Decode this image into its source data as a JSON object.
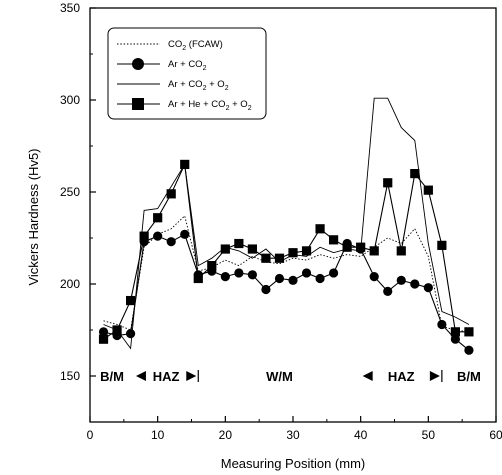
{
  "chart_data": {
    "type": "line",
    "xlabel": "Measuring Position (mm)",
    "ylabel": "Vickers Hardness (Hv5)",
    "xlim": [
      0,
      60
    ],
    "ylim": [
      125,
      350
    ],
    "xticks": [
      "0",
      "10",
      "20",
      "30",
      "40",
      "50",
      "60"
    ],
    "yticks": [
      "150",
      "200",
      "250",
      "300",
      "350"
    ],
    "xtick_values": [
      0,
      10,
      20,
      30,
      40,
      50,
      60
    ],
    "ytick_values": [
      150,
      200,
      250,
      300,
      350
    ],
    "grid": false,
    "legend_position": "top-left",
    "series": [
      {
        "name": "CO2 (FCAW)",
        "marker": "none",
        "line": "dotted",
        "x": [
          2,
          4,
          6,
          8,
          10,
          12,
          14,
          16,
          18,
          20,
          22,
          24,
          26,
          28,
          30,
          32,
          34,
          36,
          38,
          40,
          42,
          44,
          46,
          48,
          50,
          52,
          54,
          56
        ],
        "y": [
          180,
          178,
          175,
          220,
          227,
          230,
          237,
          207,
          209,
          213,
          210,
          215,
          212,
          211,
          214,
          213,
          216,
          214,
          216,
          215,
          220,
          225,
          222,
          230,
          215,
          177,
          175,
          174
        ]
      },
      {
        "name": "Ar + CO2",
        "marker": "circle",
        "line": "solid",
        "x": [
          2,
          4,
          6,
          8,
          10,
          12,
          14,
          16,
          18,
          20,
          22,
          24,
          26,
          28,
          30,
          32,
          34,
          36,
          38,
          40,
          42,
          44,
          46,
          48,
          50,
          52,
          54,
          56
        ],
        "y": [
          174,
          172,
          173,
          223,
          226,
          223,
          227,
          205,
          207,
          204,
          206,
          205,
          197,
          203,
          202,
          206,
          203,
          206,
          222,
          219,
          204,
          196,
          202,
          200,
          198,
          178,
          170,
          164
        ]
      },
      {
        "name": "Ar + CO2 + O2",
        "marker": "none",
        "line": "solid",
        "x": [
          2,
          4,
          6,
          8,
          10,
          12,
          14,
          16,
          18,
          20,
          22,
          24,
          26,
          28,
          30,
          32,
          34,
          36,
          38,
          40,
          42,
          44,
          46,
          48,
          50,
          52,
          54,
          56
        ],
        "y": [
          178,
          175,
          165,
          240,
          241,
          253,
          265,
          210,
          214,
          220,
          218,
          214,
          219,
          212,
          216,
          215,
          220,
          217,
          219,
          218,
          301,
          301,
          285,
          278,
          222,
          185,
          182,
          178
        ]
      },
      {
        "name": "Ar + He + CO2 + O2",
        "marker": "square",
        "line": "solid",
        "x": [
          2,
          4,
          6,
          8,
          10,
          12,
          14,
          16,
          18,
          20,
          22,
          24,
          26,
          28,
          30,
          32,
          34,
          36,
          38,
          40,
          42,
          44,
          46,
          48,
          50,
          52,
          54,
          56
        ],
        "y": [
          170,
          175,
          191,
          226,
          236,
          249,
          265,
          203,
          210,
          219,
          222,
          219,
          214,
          214,
          217,
          218,
          230,
          224,
          220,
          220,
          218,
          255,
          218,
          260,
          251,
          221,
          174,
          174
        ]
      }
    ],
    "legend": [
      {
        "base": "CO",
        "sub": "2",
        "tail": " (FCAW)"
      },
      {
        "base": "Ar + CO",
        "sub": "2",
        "tail": ""
      },
      {
        "base": "Ar + CO",
        "sub": "2",
        "tail": " + O",
        "sub2": "2"
      },
      {
        "base": "Ar + He + CO",
        "sub": "2",
        "tail": " + O",
        "sub2": "2"
      }
    ],
    "regions": [
      {
        "label": "B/M",
        "start": 0,
        "end": 6.5
      },
      {
        "label": "HAZ",
        "start": 6.5,
        "end": 16
      },
      {
        "label": "W/M",
        "start": 16,
        "end": 40
      },
      {
        "label": "HAZ",
        "start": 40,
        "end": 52
      },
      {
        "label": "B/M",
        "start": 52,
        "end": 60
      }
    ]
  }
}
